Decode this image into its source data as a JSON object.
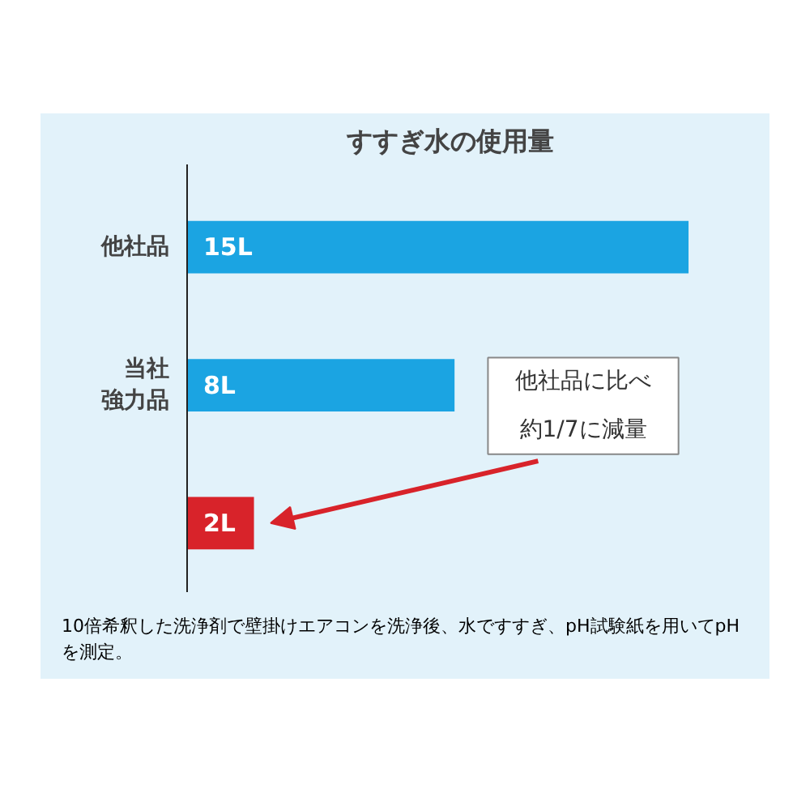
{
  "chart_data": {
    "type": "bar",
    "orientation": "horizontal",
    "title": "すすぎ水の使用量",
    "categories": [
      "他社品",
      "当社強力品",
      null
    ],
    "values": [
      15,
      8,
      2
    ],
    "colors": [
      "#1ba4e2",
      "#1ba4e2",
      "#d8232a"
    ],
    "value_labels": [
      "15L",
      "8L",
      "2L"
    ],
    "tick_labels": "y",
    "grid": false,
    "annotations": [
      "他社品に比べ",
      "約1/7に減量",
      "10倍希釈した洗浄剤で壁掛けエアコンを洗浄後、水ですすぎ、pH試験紙を用いてpHを測定。"
    ]
  }
}
